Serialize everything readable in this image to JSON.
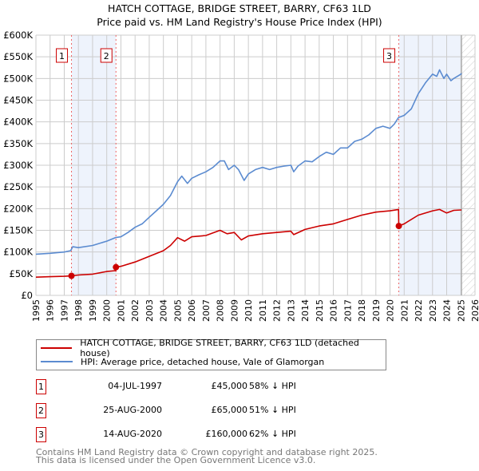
{
  "title_line1": "HATCH COTTAGE, BRIDGE STREET, BARRY, CF63 1LD",
  "title_line2": "Price paid vs. HM Land Registry's House Price Index (HPI)",
  "chart_data": {
    "type": "line",
    "ylim": [
      0,
      600000
    ],
    "xlim": [
      1995,
      2026
    ],
    "y_ticks": [
      0,
      50000,
      100000,
      150000,
      200000,
      250000,
      300000,
      350000,
      400000,
      450000,
      500000,
      550000,
      600000
    ],
    "y_tick_labels": [
      "£0",
      "£50K",
      "£100K",
      "£150K",
      "£200K",
      "£250K",
      "£300K",
      "£350K",
      "£400K",
      "£450K",
      "£500K",
      "£550K",
      "£600K"
    ],
    "x_ticks": [
      1995,
      1996,
      1997,
      1998,
      1999,
      2000,
      2001,
      2002,
      2003,
      2004,
      2005,
      2006,
      2007,
      2008,
      2009,
      2010,
      2011,
      2012,
      2013,
      2014,
      2015,
      2016,
      2017,
      2018,
      2019,
      2020,
      2021,
      2022,
      2023,
      2024,
      2025,
      2026
    ],
    "x_tick_labels": [
      "1995",
      "1996",
      "1997",
      "1998",
      "1999",
      "2000",
      "2001",
      "2002",
      "2003",
      "2004",
      "2005",
      "2006",
      "2007",
      "2008",
      "2009",
      "2010",
      "2011",
      "2012",
      "2013",
      "2014",
      "2015",
      "2016",
      "2017",
      "2018",
      "2019",
      "2020",
      "2021",
      "2022",
      "2023",
      "2024",
      "2025",
      "2026"
    ],
    "grid": true,
    "data_end": 2025.05,
    "series": [
      {
        "name": "HATCH COTTAGE, BRIDGE STREET, BARRY, CF63 1LD (detached house)",
        "color": "#cc0000",
        "x": [
          1995,
          1996,
          1997,
          1997.51,
          1998,
          1999,
          2000,
          2000.64,
          2000.65,
          2001,
          2002,
          2003,
          2004,
          2004.5,
          2005,
          2005.5,
          2006,
          2007,
          2008,
          2008.5,
          2009,
          2009.5,
          2010,
          2011,
          2012,
          2013,
          2013.2,
          2014,
          2015,
          2016,
          2017,
          2018,
          2019,
          2020,
          2020.6,
          2020.62,
          2021,
          2022,
          2023,
          2023.5,
          2024,
          2024.5,
          2025.05
        ],
        "y": [
          42000,
          43000,
          44000,
          45000,
          47000,
          49000,
          55000,
          57000,
          65000,
          67000,
          77000,
          90000,
          103000,
          115000,
          133000,
          125000,
          135000,
          138000,
          150000,
          142000,
          145000,
          128000,
          137000,
          142000,
          145000,
          148000,
          140000,
          152000,
          160000,
          165000,
          175000,
          185000,
          192000,
          195000,
          198000,
          160000,
          165000,
          185000,
          195000,
          198000,
          190000,
          196000,
          197000
        ]
      },
      {
        "name": "HPI: Average price, detached house, Vale of Glamorgan",
        "color": "#5b8bd0",
        "x": [
          1995,
          1996,
          1997,
          1997.45,
          1997.6,
          1998,
          1999,
          2000,
          2000.6,
          2001,
          2001.5,
          2002,
          2002.5,
          2003,
          2003.5,
          2004,
          2004.5,
          2005,
          2005.3,
          2005.7,
          2006,
          2006.5,
          2007,
          2007.5,
          2008,
          2008.3,
          2008.6,
          2009,
          2009.3,
          2009.7,
          2010,
          2010.5,
          2011,
          2011.5,
          2012,
          2012.5,
          2013,
          2013.2,
          2013.5,
          2014,
          2014.5,
          2015,
          2015.5,
          2016,
          2016.5,
          2017,
          2017.5,
          2018,
          2018.5,
          2019,
          2019.5,
          2020,
          2020.3,
          2020.6,
          2021,
          2021.5,
          2022,
          2022.5,
          2023,
          2023.3,
          2023.5,
          2023.8,
          2024,
          2024.3,
          2024.5,
          2025,
          2025.05
        ],
        "y": [
          95000,
          97000,
          100000,
          103000,
          112000,
          110000,
          115000,
          125000,
          133000,
          135000,
          145000,
          157000,
          165000,
          180000,
          195000,
          210000,
          230000,
          262000,
          275000,
          258000,
          270000,
          278000,
          285000,
          295000,
          310000,
          310000,
          290000,
          300000,
          290000,
          265000,
          280000,
          290000,
          295000,
          290000,
          295000,
          298000,
          300000,
          285000,
          298000,
          310000,
          308000,
          320000,
          330000,
          325000,
          340000,
          340000,
          355000,
          360000,
          370000,
          385000,
          390000,
          385000,
          395000,
          410000,
          415000,
          430000,
          465000,
          490000,
          510000,
          505000,
          520000,
          500000,
          510000,
          495000,
          500000,
          510000,
          512000
        ]
      }
    ],
    "sales": [
      {
        "label": "1",
        "x": 1997.51,
        "y": 45000
      },
      {
        "label": "2",
        "x": 2000.65,
        "y": 65000
      },
      {
        "label": "3",
        "x": 2020.62,
        "y": 160000
      }
    ]
  },
  "legend": [
    {
      "label": "HATCH COTTAGE, BRIDGE STREET, BARRY, CF63 1LD (detached house)",
      "color": "#cc0000"
    },
    {
      "label": "HPI: Average price, detached house, Vale of Glamorgan",
      "color": "#5b8bd0"
    }
  ],
  "table": [
    {
      "num": "1",
      "date": "04-JUL-1997",
      "price": "£45,000",
      "hpi": "58% ↓ HPI"
    },
    {
      "num": "2",
      "date": "25-AUG-2000",
      "price": "£65,000",
      "hpi": "51% ↓ HPI"
    },
    {
      "num": "3",
      "date": "14-AUG-2020",
      "price": "£160,000",
      "hpi": "62% ↓ HPI"
    }
  ],
  "footer_line1": "Contains HM Land Registry data © Crown copyright and database right 2025.",
  "footer_line2": "This data is licensed under the Open Government Licence v3.0."
}
